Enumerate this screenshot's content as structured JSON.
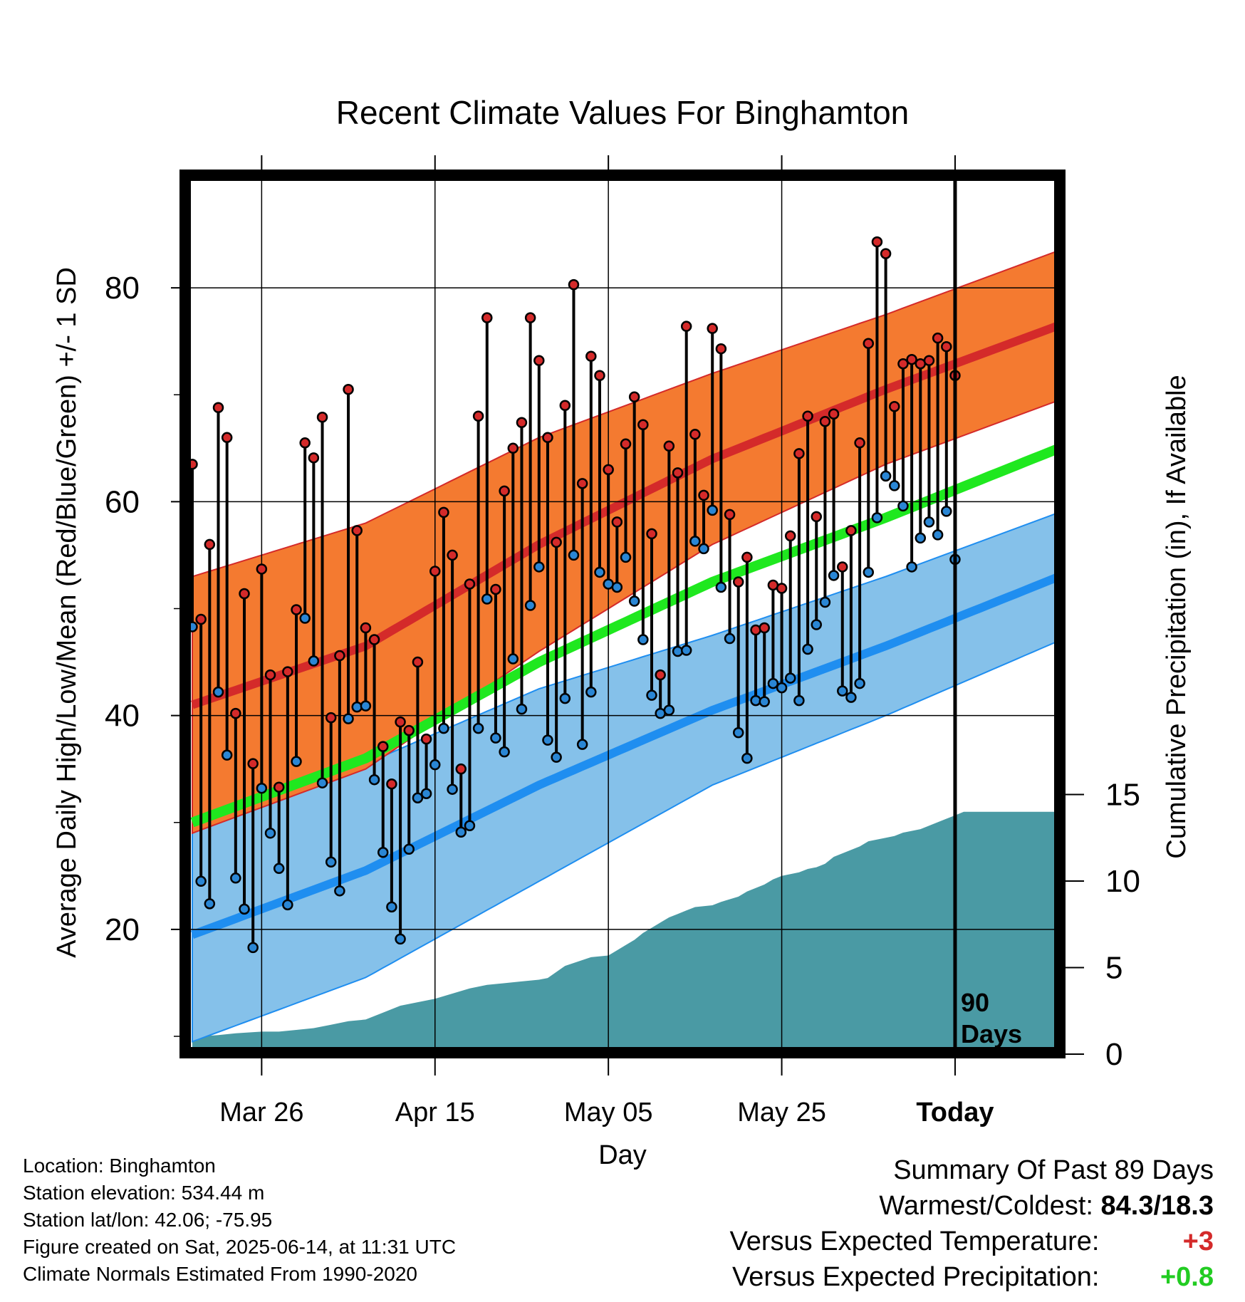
{
  "chart_data": {
    "type": "line",
    "title": "Recent Climate Values For Binghamton",
    "xlabel": "Day",
    "ylabel": "Average Daily High/Low/Mean (Red/Blue/Green) +/- 1 SD",
    "y2label": "Cumulative Precipitation (in), If Available",
    "x_tick_labels": [
      "Mar 26",
      "Apr 15",
      "May 05",
      "May 25",
      "Today"
    ],
    "y_ticks": [
      20,
      40,
      60,
      80
    ],
    "y2_ticks": [
      0,
      5,
      10,
      15
    ],
    "ylim": [
      9,
      90
    ],
    "y2lim": [
      0,
      15
    ],
    "window_label": "90\nDays",
    "colors": {
      "high_band": "#f47a30",
      "high_line": "#d42a2a",
      "low_band": "#85c1ea",
      "low_line": "#1f8ef0",
      "mean_line": "#1fe81f",
      "precip": "#4a9aa4",
      "high_point": "#d42a2a",
      "low_point": "#2a86d4"
    },
    "normals": {
      "days": [
        0,
        20,
        40,
        60,
        80,
        100
      ],
      "high_mean": [
        41.0,
        46.5,
        56.0,
        64.0,
        70.5,
        76.5
      ],
      "high_sd": [
        12.0,
        11.5,
        10.0,
        8.0,
        7.0,
        7.0
      ],
      "low_mean": [
        19.5,
        25.5,
        33.5,
        40.5,
        46.5,
        53.0
      ],
      "low_sd": [
        10.0,
        10.0,
        9.0,
        7.0,
        6.5,
        6.0
      ],
      "mean_mean": [
        30.0,
        36.0,
        45.0,
        52.5,
        58.5,
        65.0
      ]
    },
    "daily_highs": [
      63.5,
      49,
      56,
      68.8,
      66,
      40.2,
      51.4,
      35.5,
      53.7,
      43.8,
      33.3,
      44.1,
      49.9,
      65.5,
      64.1,
      67.9,
      39.8,
      45.6,
      70.5,
      57.3,
      48.2,
      47.1,
      37.1,
      33.6,
      39.4,
      38.6,
      45,
      37.8,
      53.5,
      59,
      55,
      35,
      52.3,
      68,
      77.2,
      51.8,
      61,
      65,
      67.4,
      77.2,
      73.2,
      66,
      56.2,
      69,
      80.3,
      61.7,
      73.6,
      71.8,
      63,
      58.1,
      65.4,
      69.8,
      67.2,
      57,
      43.8,
      65.2,
      62.7,
      76.4,
      66.3,
      60.6,
      76.2,
      74.3,
      58.8,
      52.5,
      54.8,
      48,
      48.2,
      52.2,
      51.9,
      56.8,
      64.5,
      68,
      58.6,
      67.5,
      68.2,
      53.9,
      57.3,
      65.5,
      74.8,
      84.3,
      83.2,
      68.9,
      72.9,
      73.3,
      72.9,
      73.2,
      75.3,
      74.5,
      71.8
    ],
    "daily_lows": [
      48.3,
      24.5,
      22.4,
      42.2,
      36.3,
      24.8,
      21.9,
      18.3,
      33.2,
      29,
      25.7,
      22.3,
      35.7,
      49.1,
      45.1,
      33.7,
      26.3,
      23.6,
      39.7,
      40.8,
      40.9,
      34,
      27.2,
      22.1,
      19.1,
      27.5,
      32.3,
      32.7,
      35.4,
      38.8,
      33.1,
      29.1,
      29.7,
      38.8,
      50.9,
      37.9,
      36.6,
      45.3,
      40.6,
      50.3,
      53.9,
      37.7,
      36.1,
      41.6,
      55,
      37.3,
      42.2,
      53.4,
      52.3,
      52,
      54.8,
      50.7,
      47.1,
      41.9,
      40.2,
      40.5,
      46,
      46.1,
      56.3,
      55.6,
      59.2,
      52,
      47.2,
      38.4,
      36,
      41.4,
      41.3,
      43,
      42.6,
      43.5,
      41.4,
      46.2,
      48.5,
      50.6,
      53.1,
      42.3,
      41.7,
      43,
      53.4,
      58.5,
      62.4,
      61.5,
      59.6,
      53.9,
      56.6,
      58.1,
      56.9,
      59.1,
      54.6
    ],
    "precip_cum": {
      "days": [
        0,
        3,
        5,
        8,
        10,
        12,
        14,
        16,
        18,
        20,
        22,
        24,
        26,
        28,
        30,
        32,
        34,
        36,
        38,
        40,
        41,
        43,
        46,
        48,
        49,
        50,
        51,
        52,
        53,
        54,
        55,
        56,
        57,
        58,
        60,
        61,
        63,
        64,
        66,
        67,
        68,
        70,
        71,
        72,
        73,
        74,
        76,
        77,
        78,
        80,
        81,
        82,
        84,
        85,
        86,
        87,
        88,
        89,
        100
      ],
      "values": [
        1.0,
        1.1,
        1.2,
        1.3,
        1.3,
        1.4,
        1.5,
        1.7,
        1.9,
        2.0,
        2.4,
        2.8,
        3.0,
        3.2,
        3.5,
        3.8,
        4.0,
        4.1,
        4.2,
        4.3,
        4.4,
        5.1,
        5.6,
        5.7,
        6.0,
        6.3,
        6.6,
        7.0,
        7.3,
        7.6,
        7.9,
        8.1,
        8.3,
        8.5,
        8.6,
        8.8,
        9.1,
        9.4,
        9.8,
        10.1,
        10.3,
        10.5,
        10.7,
        10.8,
        11.0,
        11.4,
        11.8,
        12.0,
        12.3,
        12.5,
        12.6,
        12.8,
        13.0,
        13.2,
        13.4,
        13.6,
        13.8,
        14.0,
        14.0
      ]
    }
  },
  "info": {
    "location": "Location: Binghamton",
    "elevation": "Station elevation: 534.44 m",
    "latlon": "Station lat/lon: 42.06; -75.95",
    "created": "Figure created on Sat, 2025-06-14, at 11:31 UTC",
    "normals": "Climate Normals Estimated From 1990-2020"
  },
  "summary": {
    "title": "Summary Of Past 89 Days",
    "warm_cold_label": "Warmest/Coldest:",
    "warm_cold_value": "84.3/18.3",
    "temp_label": "Versus Expected Temperature:",
    "temp_value": "+3",
    "precip_label": "Versus Expected Precipitation:",
    "precip_value": "+0.8"
  }
}
